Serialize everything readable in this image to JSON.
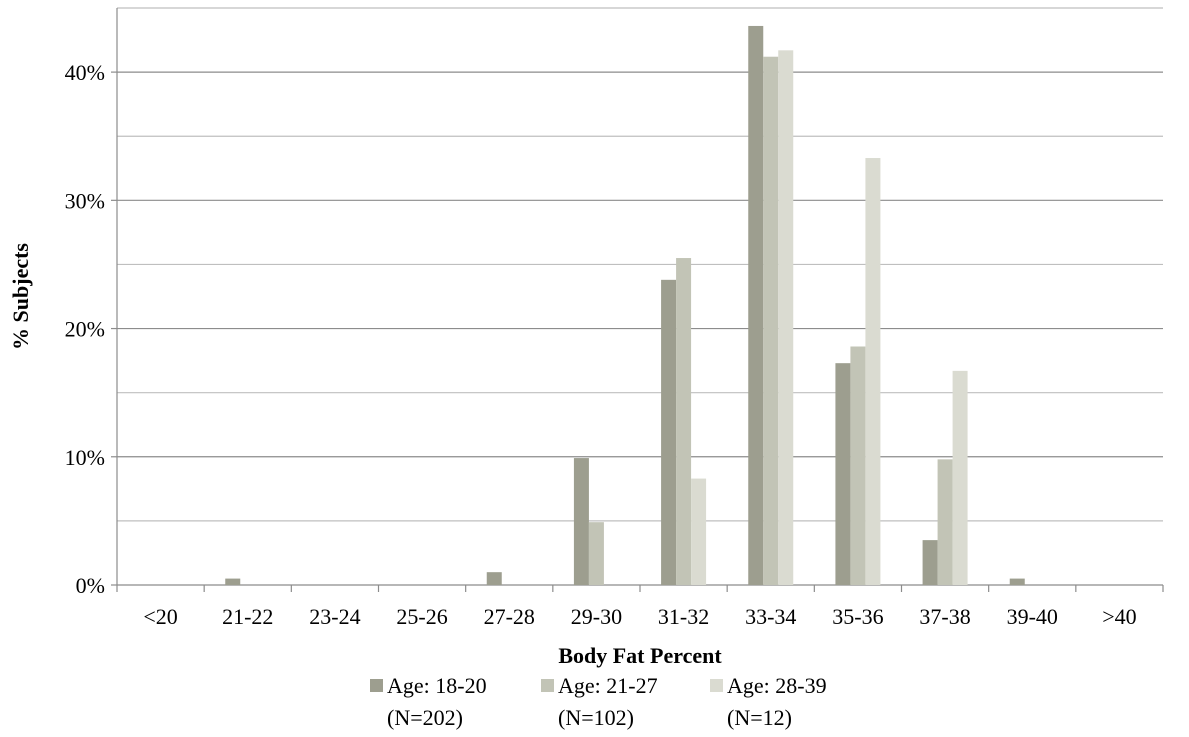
{
  "chart_data": {
    "type": "bar",
    "title": "",
    "xlabel": "Body Fat Percent",
    "ylabel": "% Subjects",
    "ylim": [
      0,
      45
    ],
    "yticks": [
      0,
      10,
      20,
      30,
      40
    ],
    "ytick_labels": [
      "0%",
      "10%",
      "20%",
      "30%",
      "40%"
    ],
    "grid": "horizontal, every 5%",
    "legend_position": "bottom",
    "categories": [
      "<20",
      "21-22",
      "23-24",
      "25-26",
      "27-28",
      "29-30",
      "31-32",
      "33-34",
      "35-36",
      "37-38",
      "39-40",
      ">40"
    ],
    "series": [
      {
        "name": "Age: 18-20",
        "name_sub": "(N=202)",
        "color": "#9d9e8f",
        "values": [
          0,
          0.5,
          0,
          0,
          1.0,
          9.9,
          23.8,
          43.6,
          17.3,
          3.5,
          0.5,
          0
        ]
      },
      {
        "name": "Age: 21-27",
        "name_sub": "(N=102)",
        "color": "#c2c4b6",
        "values": [
          0,
          0,
          0,
          0,
          0,
          4.9,
          25.5,
          41.2,
          18.6,
          9.8,
          0,
          0
        ]
      },
      {
        "name": "Age: 28-39",
        "name_sub": "(N=12)",
        "color": "#dadbd1",
        "values": [
          0,
          0,
          0,
          0,
          0,
          0,
          8.3,
          41.7,
          33.3,
          16.7,
          0,
          0
        ]
      }
    ]
  }
}
